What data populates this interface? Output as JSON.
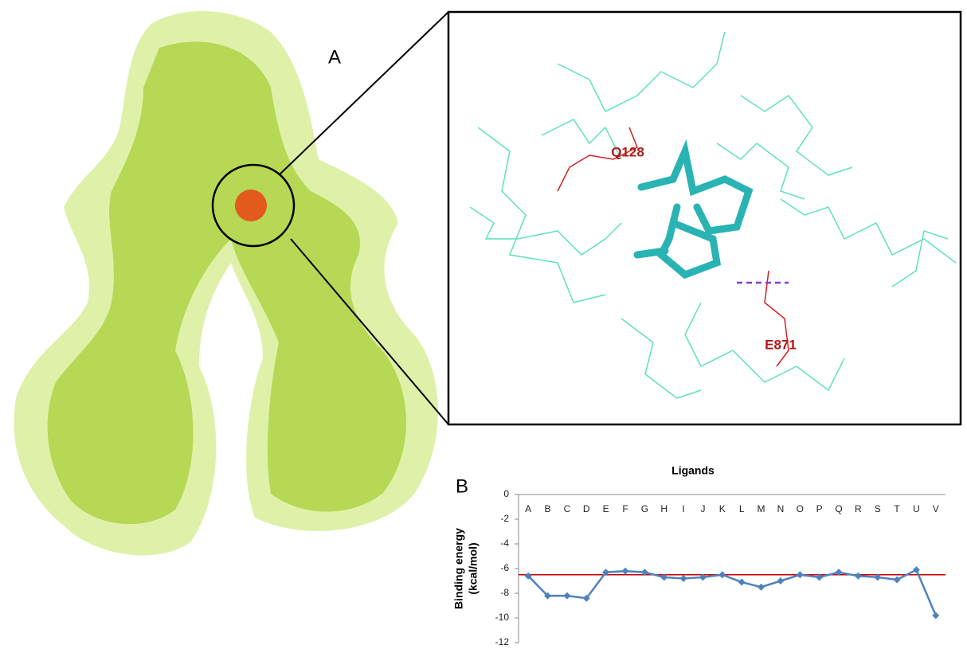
{
  "panel_labels": [
    "A",
    "B"
  ],
  "residue_labels": [
    "Q128",
    "E871"
  ],
  "chart_data": {
    "type": "line",
    "title": "Ligands",
    "y_label_lines": [
      "Binding energy",
      "(kcal/mol)"
    ],
    "categories": [
      "A",
      "B",
      "C",
      "D",
      "E",
      "F",
      "G",
      "H",
      "I",
      "J",
      "K",
      "L",
      "M",
      "N",
      "O",
      "P",
      "Q",
      "R",
      "S",
      "T",
      "U",
      "V"
    ],
    "series": [
      {
        "color": "#4f81bd",
        "values": [
          -6.6,
          -8.2,
          -8.2,
          -8.4,
          -6.3,
          -6.2,
          -6.3,
          -6.7,
          -6.8,
          -6.7,
          -6.5,
          -7.1,
          -7.5,
          -7.0,
          -6.5,
          -6.7,
          -6.3,
          -6.6,
          -6.7,
          -6.9,
          -6.1,
          -9.8
        ]
      }
    ],
    "reference_line": {
      "value": -6.5,
      "color": "#c00000"
    },
    "ylim": [
      0,
      -12
    ],
    "yticks": [
      0,
      -2,
      -4,
      -6,
      -8,
      -10,
      -12
    ]
  }
}
